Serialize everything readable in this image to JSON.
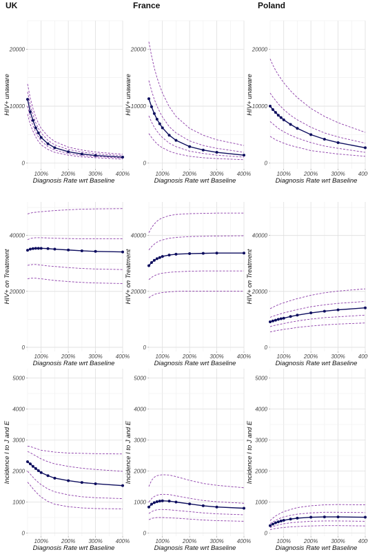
{
  "chart_data": {
    "type": "line",
    "columns": [
      "UK",
      "France",
      "Poland"
    ],
    "xlabel": "Diagnosis Rate wrt Baseline",
    "x_ticks": [
      100,
      200,
      300,
      400
    ],
    "x_tick_labels": [
      "100%",
      "200%",
      "300%",
      "400%"
    ],
    "xlim": [
      50,
      400
    ],
    "grid": true,
    "colors": {
      "main_line": "#0d0d5e",
      "bands": "#8b3aa8"
    },
    "panels": [
      {
        "col": "UK",
        "row": 0,
        "ylabel": "HIV+ unaware",
        "ylim": [
          -1000,
          25000
        ],
        "y_ticks": [
          0,
          10000,
          20000
        ],
        "x": [
          50,
          60,
          70,
          80,
          90,
          100,
          125,
          150,
          200,
          250,
          300,
          400
        ],
        "series": [
          {
            "role": "main",
            "values": [
              11200,
              9000,
              7500,
              6200,
              5300,
              4500,
              3400,
              2700,
              2000,
              1600,
              1350,
              1050
            ]
          },
          {
            "role": "upper-95",
            "values": [
              13900,
              11400,
              9600,
              8100,
              7000,
              6100,
              4700,
              3800,
              2800,
              2300,
              1950,
              1550
            ]
          },
          {
            "role": "upper-50",
            "values": [
              12500,
              10200,
              8500,
              7100,
              6100,
              5300,
              4000,
              3200,
              2400,
              1950,
              1650,
              1300
            ]
          },
          {
            "role": "lower-50",
            "values": [
              10000,
              8000,
              6600,
              5400,
              4600,
              3900,
              2900,
              2300,
              1700,
              1350,
              1150,
              900
            ]
          },
          {
            "role": "lower-95",
            "values": [
              8600,
              6800,
              5600,
              4600,
              3800,
              3200,
              2400,
              1900,
              1400,
              1100,
              950,
              700
            ]
          }
        ]
      },
      {
        "col": "France",
        "row": 0,
        "ylabel": "HIV+ unaware",
        "ylim": [
          -1000,
          25000
        ],
        "y_ticks": [
          0,
          10000,
          20000
        ],
        "x": [
          50,
          60,
          70,
          80,
          90,
          100,
          125,
          150,
          200,
          250,
          300,
          400
        ],
        "series": [
          {
            "role": "main",
            "values": [
              11300,
              9900,
              8700,
              7700,
              6900,
              6200,
              4900,
              4000,
              2900,
              2300,
              1900,
              1400
            ]
          },
          {
            "role": "upper-95",
            "values": [
              21300,
              18800,
              16700,
              15000,
              13600,
              12300,
              9900,
              8200,
              6100,
              4900,
              4100,
              3100
            ]
          },
          {
            "role": "upper-50",
            "values": [
              14500,
              12700,
              11200,
              10000,
              9000,
              8100,
              6400,
              5300,
              3900,
              3100,
              2600,
              1900
            ]
          },
          {
            "role": "lower-50",
            "values": [
              8300,
              7200,
              6300,
              5600,
              5000,
              4500,
              3500,
              2900,
              2100,
              1700,
              1400,
              1050
            ]
          },
          {
            "role": "lower-95",
            "values": [
              5200,
              4500,
              3900,
              3400,
              3000,
              2700,
              2100,
              1700,
              1200,
              950,
              800,
              600
            ]
          }
        ]
      },
      {
        "col": "Poland",
        "row": 0,
        "ylabel": "HIV+ unaware",
        "ylim": [
          -1000,
          25000
        ],
        "y_ticks": [
          0,
          10000,
          20000
        ],
        "x": [
          50,
          60,
          70,
          80,
          90,
          100,
          125,
          150,
          200,
          250,
          300,
          400
        ],
        "series": [
          {
            "role": "main",
            "values": [
              10000,
              9400,
              8900,
              8400,
              8000,
              7600,
              6800,
              6100,
              5000,
              4200,
              3600,
              2700
            ]
          },
          {
            "role": "upper-95",
            "values": [
              18300,
              17200,
              16300,
              15500,
              14800,
              14100,
              12700,
              11500,
              9600,
              8200,
              7100,
              5400
            ]
          },
          {
            "role": "upper-50",
            "values": [
              12300,
              11600,
              11000,
              10400,
              9900,
              9400,
              8400,
              7600,
              6300,
              5300,
              4600,
              3500
            ]
          },
          {
            "role": "lower-50",
            "values": [
              7300,
              6900,
              6500,
              6100,
              5800,
              5500,
              4900,
              4400,
              3600,
              3000,
              2600,
              1900
            ]
          },
          {
            "role": "lower-95",
            "values": [
              4700,
              4400,
              4100,
              3900,
              3700,
              3500,
              3100,
              2800,
              2200,
              1900,
              1600,
              1200
            ]
          }
        ]
      },
      {
        "col": "UK",
        "row": 1,
        "ylabel": "HIV+ on Treatment",
        "ylim": [
          -1500,
          52000
        ],
        "y_ticks": [
          0,
          20000,
          40000
        ],
        "x": [
          50,
          60,
          70,
          80,
          90,
          100,
          125,
          150,
          200,
          250,
          300,
          400
        ],
        "series": [
          {
            "role": "main",
            "values": [
              34700,
              35100,
              35300,
              35400,
              35400,
              35400,
              35300,
              35100,
              34800,
              34500,
              34300,
              34100
            ]
          },
          {
            "role": "upper-95",
            "values": [
              47700,
              48000,
              48200,
              48300,
              48400,
              48500,
              48700,
              48900,
              49200,
              49400,
              49500,
              49600
            ]
          },
          {
            "role": "upper-50",
            "values": [
              38500,
              38900,
              39100,
              39200,
              39200,
              39200,
              39100,
              39000,
              38900,
              38800,
              38800,
              38800
            ]
          },
          {
            "role": "lower-50",
            "values": [
              29300,
              29500,
              29600,
              29600,
              29500,
              29400,
              29100,
              28900,
              28500,
              28200,
              28000,
              27800
            ]
          },
          {
            "role": "lower-95",
            "values": [
              24500,
              24700,
              24700,
              24700,
              24600,
              24500,
              24200,
              23900,
              23500,
              23200,
              23000,
              22800
            ]
          }
        ]
      },
      {
        "col": "France",
        "row": 1,
        "ylabel": "HIV+ on Treatment",
        "ylim": [
          -1500,
          52000
        ],
        "y_ticks": [
          0,
          20000,
          40000
        ],
        "x": [
          50,
          60,
          70,
          80,
          90,
          100,
          125,
          150,
          200,
          250,
          300,
          400
        ],
        "series": [
          {
            "role": "main",
            "values": [
              29200,
              30300,
              31100,
              31700,
              32100,
              32500,
              33000,
              33300,
              33500,
              33600,
              33700,
              33700
            ]
          },
          {
            "role": "upper-95",
            "values": [
              41000,
              42800,
              44100,
              45100,
              45800,
              46300,
              47100,
              47500,
              47800,
              47900,
              48000,
              48000
            ]
          },
          {
            "role": "upper-50",
            "values": [
              34800,
              36000,
              36900,
              37600,
              38100,
              38400,
              39000,
              39300,
              39600,
              39700,
              39800,
              39900
            ]
          },
          {
            "role": "lower-50",
            "values": [
              24200,
              25000,
              25600,
              26000,
              26300,
              26500,
              26800,
              27000,
              27200,
              27300,
              27300,
              27300
            ]
          },
          {
            "role": "lower-95",
            "values": [
              17700,
              18400,
              18900,
              19200,
              19400,
              19600,
              19800,
              20000,
              20100,
              20100,
              20100,
              20100
            ]
          }
        ]
      },
      {
        "col": "Poland",
        "row": 1,
        "ylabel": "HIV+ on Treatment",
        "ylim": [
          -1500,
          52000
        ],
        "y_ticks": [
          0,
          20000,
          40000
        ],
        "x": [
          50,
          60,
          70,
          80,
          90,
          100,
          125,
          150,
          200,
          250,
          300,
          400
        ],
        "series": [
          {
            "role": "main",
            "values": [
              9100,
              9400,
              9700,
              10000,
              10200,
              10400,
              11000,
              11500,
              12300,
              12900,
              13400,
              14100
            ]
          },
          {
            "role": "upper-95",
            "values": [
              13800,
              14300,
              14800,
              15200,
              15600,
              15900,
              16700,
              17400,
              18600,
              19500,
              20100,
              20900
            ]
          },
          {
            "role": "upper-50",
            "values": [
              10700,
              11100,
              11400,
              11700,
              12000,
              12300,
              12900,
              13500,
              14500,
              15200,
              15700,
              16400
            ]
          },
          {
            "role": "lower-50",
            "values": [
              7400,
              7700,
              7900,
              8100,
              8300,
              8500,
              9000,
              9400,
              10100,
              10600,
              10900,
              11500
            ]
          },
          {
            "role": "lower-95",
            "values": [
              5500,
              5700,
              5900,
              6100,
              6200,
              6400,
              6700,
              7100,
              7600,
              8000,
              8300,
              8700
            ]
          }
        ]
      },
      {
        "col": "UK",
        "row": 2,
        "ylabel": "Incidence I to J and E",
        "ylim": [
          -100,
          5300
        ],
        "y_ticks": [
          0,
          1000,
          2000,
          3000,
          4000,
          5000
        ],
        "x": [
          50,
          60,
          70,
          80,
          90,
          100,
          125,
          150,
          200,
          250,
          300,
          400
        ],
        "series": [
          {
            "role": "main",
            "values": [
              2300,
              2230,
              2150,
              2080,
              2010,
              1950,
              1850,
              1770,
              1690,
              1630,
              1590,
              1530
            ]
          },
          {
            "role": "upper-95",
            "values": [
              2800,
              2790,
              2760,
              2730,
              2700,
              2670,
              2640,
              2610,
              2580,
              2570,
              2560,
              2550
            ]
          },
          {
            "role": "upper-50",
            "values": [
              2630,
              2590,
              2540,
              2490,
              2440,
              2390,
              2300,
              2230,
              2150,
              2090,
              2050,
              1990
            ]
          },
          {
            "role": "lower-50",
            "values": [
              1990,
              1900,
              1800,
              1710,
              1630,
              1560,
              1420,
              1330,
              1230,
              1170,
              1140,
              1110
            ]
          },
          {
            "role": "lower-95",
            "values": [
              1640,
              1540,
              1430,
              1330,
              1240,
              1160,
              1020,
              930,
              850,
              810,
              790,
              780
            ]
          }
        ]
      },
      {
        "col": "France",
        "row": 2,
        "ylabel": "Incidence I to J and E",
        "ylim": [
          -100,
          5300
        ],
        "y_ticks": [
          0,
          1000,
          2000,
          3000,
          4000,
          5000
        ],
        "x": [
          50,
          60,
          70,
          80,
          90,
          100,
          125,
          150,
          200,
          250,
          300,
          400
        ],
        "series": [
          {
            "role": "main",
            "values": [
              840,
              930,
              980,
              1010,
              1030,
              1040,
              1030,
              1000,
              940,
              880,
              840,
              800
            ]
          },
          {
            "role": "upper-95",
            "values": [
              1500,
              1700,
              1800,
              1850,
              1870,
              1880,
              1870,
              1820,
              1700,
              1600,
              1540,
              1460
            ]
          },
          {
            "role": "upper-50",
            "values": [
              1000,
              1110,
              1180,
              1220,
              1240,
              1250,
              1240,
              1200,
              1120,
              1050,
              1010,
              960
            ]
          },
          {
            "role": "lower-50",
            "values": [
              630,
              690,
              730,
              750,
              760,
              760,
              750,
              730,
              690,
              650,
              620,
              590
            ]
          },
          {
            "role": "lower-95",
            "values": [
              430,
              470,
              490,
              500,
              500,
              500,
              490,
              480,
              450,
              420,
              400,
              380
            ]
          }
        ]
      },
      {
        "col": "Poland",
        "row": 2,
        "ylabel": "Incidence I to J and E",
        "ylim": [
          -100,
          5300
        ],
        "y_ticks": [
          0,
          1000,
          2000,
          3000,
          4000,
          5000
        ],
        "x": [
          50,
          60,
          70,
          80,
          90,
          100,
          125,
          150,
          200,
          250,
          300,
          400
        ],
        "series": [
          {
            "role": "main",
            "values": [
              240,
              290,
              330,
              360,
              390,
              410,
              450,
              480,
              510,
              520,
              520,
              510
            ]
          },
          {
            "role": "upper-95",
            "values": [
              400,
              480,
              550,
              600,
              650,
              690,
              760,
              820,
              880,
              910,
              920,
              910
            ]
          },
          {
            "role": "upper-50",
            "values": [
              300,
              360,
              410,
              450,
              490,
              520,
              570,
              610,
              650,
              670,
              670,
              660
            ]
          },
          {
            "role": "lower-50",
            "values": [
              180,
              210,
              240,
              260,
              280,
              300,
              330,
              350,
              380,
              390,
              390,
              380
            ]
          },
          {
            "role": "lower-95",
            "values": [
              110,
              130,
              150,
              160,
              170,
              180,
              200,
              210,
              230,
              240,
              240,
              230
            ]
          }
        ]
      }
    ]
  }
}
